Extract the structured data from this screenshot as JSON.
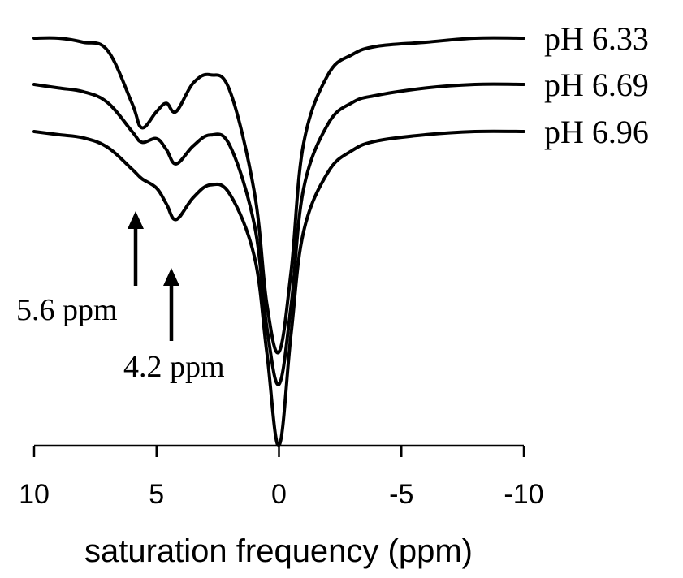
{
  "chart_data": {
    "type": "line",
    "title": "",
    "xlabel": "saturation frequency (ppm)",
    "ylabel": "",
    "xlim": [
      10,
      -10
    ],
    "x_axis_reversed": true,
    "x_ticks": [
      10,
      5,
      0,
      -5,
      -10
    ],
    "x_tick_labels": [
      "10",
      "5",
      "0",
      "-5",
      "-10"
    ],
    "ylim": [
      0,
      1
    ],
    "y_axis_shown": false,
    "grid": false,
    "legend": "inline labels at right end of each curve",
    "series": [
      {
        "name": "pH 6.33",
        "points": [
          [
            10,
            1.0
          ],
          [
            9,
            1.0
          ],
          [
            8,
            0.99
          ],
          [
            7,
            0.97
          ],
          [
            6,
            0.84
          ],
          [
            5.6,
            0.78
          ],
          [
            5,
            0.82
          ],
          [
            4.6,
            0.84
          ],
          [
            4.2,
            0.82
          ],
          [
            3.5,
            0.89
          ],
          [
            2.8,
            0.91
          ],
          [
            2,
            0.87
          ],
          [
            1,
            0.62
          ],
          [
            0.5,
            0.35
          ],
          [
            0,
            0.23
          ],
          [
            -0.5,
            0.43
          ],
          [
            -1,
            0.74
          ],
          [
            -2,
            0.91
          ],
          [
            -3,
            0.96
          ],
          [
            -4,
            0.98
          ],
          [
            -6,
            0.99
          ],
          [
            -8,
            1.0
          ],
          [
            -10,
            1.0
          ]
        ]
      },
      {
        "name": "pH 6.69",
        "points": [
          [
            10,
            1.0
          ],
          [
            9,
            0.99
          ],
          [
            8,
            0.98
          ],
          [
            7,
            0.95
          ],
          [
            6,
            0.87
          ],
          [
            5.6,
            0.84
          ],
          [
            5,
            0.85
          ],
          [
            4.6,
            0.82
          ],
          [
            4.2,
            0.78
          ],
          [
            3.5,
            0.83
          ],
          [
            2.8,
            0.86
          ],
          [
            2,
            0.83
          ],
          [
            1,
            0.61
          ],
          [
            0.5,
            0.33
          ],
          [
            0,
            0.17
          ],
          [
            -0.5,
            0.39
          ],
          [
            -1,
            0.71
          ],
          [
            -2,
            0.89
          ],
          [
            -3,
            0.95
          ],
          [
            -4,
            0.97
          ],
          [
            -6,
            0.99
          ],
          [
            -8,
            1.0
          ],
          [
            -10,
            1.0
          ]
        ]
      },
      {
        "name": "pH 6.96",
        "points": [
          [
            10,
            1.0
          ],
          [
            9,
            0.99
          ],
          [
            8,
            0.98
          ],
          [
            7,
            0.95
          ],
          [
            6,
            0.88
          ],
          [
            5.6,
            0.85
          ],
          [
            5,
            0.82
          ],
          [
            4.6,
            0.77
          ],
          [
            4.2,
            0.72
          ],
          [
            3.5,
            0.79
          ],
          [
            2.8,
            0.83
          ],
          [
            2,
            0.8
          ],
          [
            1,
            0.6
          ],
          [
            0.5,
            0.3
          ],
          [
            0,
            0.0
          ],
          [
            -0.5,
            0.36
          ],
          [
            -1,
            0.68
          ],
          [
            -2,
            0.87
          ],
          [
            -3,
            0.94
          ],
          [
            -4,
            0.97
          ],
          [
            -6,
            0.99
          ],
          [
            -8,
            1.0
          ],
          [
            -10,
            1.0
          ]
        ]
      }
    ],
    "annotations": [
      {
        "text": "5.6 ppm",
        "x": 5.6
      },
      {
        "text": "4.2 ppm",
        "x": 4.2
      }
    ]
  }
}
